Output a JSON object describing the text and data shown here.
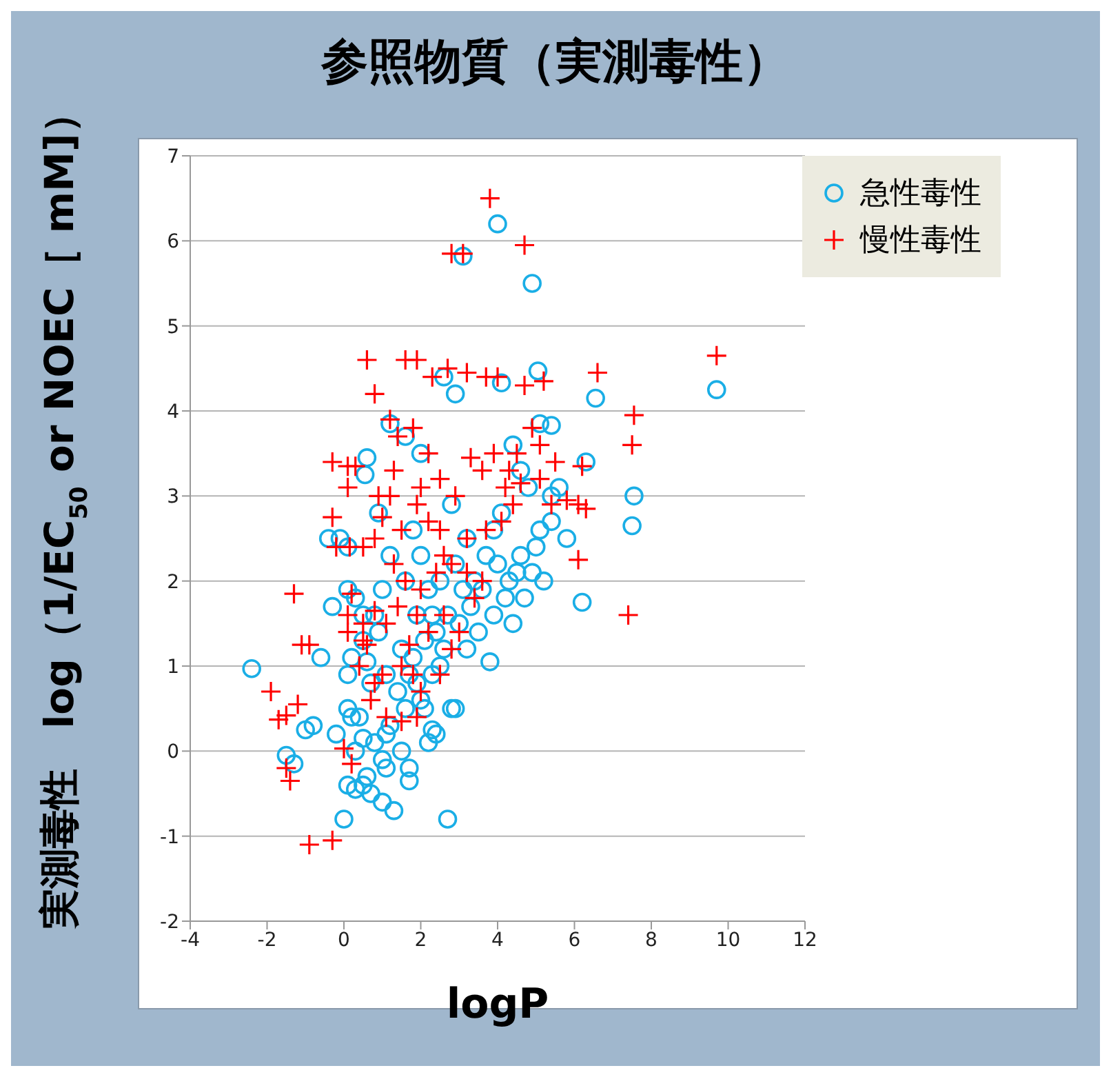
{
  "chart_data": {
    "type": "scatter",
    "title": "参照物質（実測毒性）",
    "xlabel": "logP",
    "ylabel": "実測毒性　log（1/EC$_{50}$ or NOEC［ mM]）",
    "xlim": [
      -4,
      12
    ],
    "xticks": [
      -4,
      -2,
      0,
      2,
      4,
      6,
      8,
      10,
      12
    ],
    "ylim": [
      -2,
      7
    ],
    "yticks": [
      -2,
      -1,
      0,
      1,
      2,
      3,
      4,
      5,
      6,
      7
    ],
    "grid": "y",
    "legend": "top right",
    "series": [
      {
        "name": "急性毒性",
        "color": "#1aaee6",
        "marker": "circle",
        "x": [
          -2.4,
          -1.5,
          -1.3,
          -1.0,
          -0.8,
          -0.6,
          -0.3,
          -0.4,
          -0.1,
          0.1,
          0.6,
          0.55,
          0.9,
          -0.2,
          0,
          0.1,
          0.3,
          0.5,
          0.7,
          0.6,
          1.0,
          1.3,
          1.0,
          1.1,
          1.7,
          1.7,
          2.7,
          1.5,
          2.2,
          2.3,
          2.8,
          2.9,
          0.1,
          0.2,
          0.4,
          0.5,
          0.8,
          1.2,
          0.1,
          0.2,
          0.6,
          0.5,
          0.1,
          0.3,
          0.5,
          0.8,
          0.9,
          0.7,
          1.1,
          1.4,
          1.6,
          1.9,
          2.0,
          2.3,
          2.5,
          1.8,
          2.1,
          2.4,
          2.7,
          3.0,
          3.3,
          3.6,
          3.9,
          4.2,
          4.5,
          4.7,
          3.8,
          2.6,
          1.5,
          1.9,
          2.2,
          2.5,
          2.9,
          3.1,
          3.4,
          3.7,
          4.0,
          4.3,
          4.6,
          5.0,
          5.1,
          5.4,
          5.2,
          5.6,
          5.4,
          5.8,
          6.2,
          6.3,
          6.55,
          7.55,
          7.5,
          9.7,
          4.0,
          3.1,
          4.9,
          5.05,
          4.1,
          2.6,
          2.9,
          1.2,
          1.6,
          2.0,
          5.4,
          5.1,
          4.4,
          4.6,
          1.8,
          1.2,
          2.0,
          3.2,
          2.8,
          4.1,
          4.8,
          3.9,
          1.6,
          1.0,
          2.3,
          3.5,
          4.4,
          4.9,
          3.2,
          2.1,
          1.7,
          2.4,
          1.1,
          0.3
        ],
        "values": [
          0.97,
          -0.05,
          -0.15,
          0.25,
          0.3,
          1.1,
          1.7,
          2.5,
          2.5,
          2.4,
          3.45,
          3.25,
          2.8,
          0.2,
          -0.8,
          -0.4,
          -0.45,
          -0.4,
          -0.5,
          -0.3,
          -0.6,
          -0.7,
          -0.1,
          -0.2,
          -0.2,
          -0.35,
          -0.8,
          0.0,
          0.1,
          0.25,
          0.5,
          0.5,
          0.5,
          0.4,
          0.4,
          0.15,
          0.1,
          0.3,
          0.9,
          1.1,
          1.05,
          1.3,
          1.9,
          1.8,
          1.6,
          1.6,
          1.4,
          0.8,
          0.9,
          0.7,
          0.5,
          0.8,
          0.6,
          0.9,
          1.0,
          1.1,
          1.3,
          1.4,
          1.6,
          1.5,
          1.7,
          1.9,
          1.6,
          1.8,
          2.1,
          1.8,
          1.05,
          1.2,
          1.2,
          1.6,
          1.9,
          2.0,
          2.2,
          1.9,
          2.0,
          2.3,
          2.2,
          2.0,
          2.3,
          2.4,
          2.6,
          2.7,
          2.0,
          3.1,
          3.0,
          2.5,
          1.75,
          3.4,
          4.15,
          3.0,
          2.65,
          4.25,
          6.2,
          5.82,
          5.5,
          4.47,
          4.33,
          4.4,
          4.2,
          3.85,
          3.7,
          3.5,
          3.83,
          3.85,
          3.6,
          3.3,
          2.6,
          2.3,
          2.3,
          2.5,
          2.9,
          2.8,
          3.1,
          2.6,
          2.0,
          1.9,
          1.6,
          1.4,
          1.5,
          2.1,
          1.2,
          0.5,
          0.9,
          0.2,
          0.2,
          0.0
        ]
      },
      {
        "name": "慢性毒性",
        "color": "#ff0000",
        "marker": "cross",
        "x": [
          -1.3,
          -1.1,
          -0.9,
          -1.9,
          -1.7,
          -1.5,
          -1.2,
          -1.5,
          -1.4,
          -0.9,
          -0.3,
          0.0,
          0.2,
          0.1,
          0.1,
          0.2,
          0.5,
          0.5,
          0.7,
          0.8,
          0.4,
          0.8,
          0.6,
          -0.3,
          -0.3,
          0.1,
          0.3,
          0.1,
          0.15,
          -0.2,
          0.8,
          0.5,
          0.9,
          1.0,
          0.6,
          0.8,
          1.2,
          1.6,
          1.9,
          2.3,
          2.7,
          3.2,
          3.7,
          4.0,
          4.7,
          5.2,
          3.8,
          4.7,
          2.8,
          3.1,
          1.4,
          1.8,
          2.2,
          2.5,
          2.9,
          3.3,
          3.6,
          4.2,
          4.5,
          4.9,
          5.1,
          5.5,
          5.1,
          5.4,
          5.8,
          6.1,
          6.3,
          6.2,
          6.6,
          7.55,
          7.5,
          6.1,
          7.4,
          9.7,
          1.2,
          1.5,
          1.9,
          2.2,
          2.5,
          3.2,
          3.7,
          4.1,
          4.4,
          1.3,
          1.6,
          2.0,
          2.4,
          2.8,
          3.2,
          3.6,
          1.1,
          1.4,
          1.9,
          2.2,
          2.6,
          3.0,
          3.4,
          1.0,
          1.5,
          1.8,
          2.5,
          1.1,
          1.5,
          1.9,
          2.0,
          2.8,
          4.6,
          4.3,
          3.9,
          2.0,
          1.3,
          2.6,
          1.7
        ],
        "values": [
          1.85,
          1.25,
          1.25,
          0.7,
          0.37,
          0.42,
          0.55,
          -0.2,
          -0.35,
          -1.1,
          -1.05,
          0.03,
          -0.15,
          1.4,
          1.6,
          1.85,
          1.3,
          1.5,
          0.6,
          0.8,
          1.0,
          1.65,
          1.25,
          3.4,
          2.75,
          3.35,
          3.35,
          3.1,
          2.4,
          2.4,
          2.5,
          2.4,
          3.0,
          2.75,
          4.6,
          4.2,
          3.9,
          4.6,
          4.6,
          4.4,
          4.5,
          4.45,
          4.4,
          4.4,
          4.3,
          4.35,
          6.5,
          5.95,
          5.85,
          5.85,
          3.7,
          3.8,
          3.5,
          3.2,
          3.0,
          3.45,
          3.3,
          3.1,
          3.5,
          3.8,
          3.6,
          3.4,
          3.2,
          2.9,
          2.95,
          2.9,
          2.85,
          3.35,
          4.45,
          3.95,
          3.6,
          2.25,
          1.6,
          4.65,
          3.0,
          2.6,
          2.9,
          2.7,
          2.6,
          2.5,
          2.6,
          2.7,
          2.9,
          2.2,
          2.0,
          1.9,
          2.1,
          2.2,
          2.1,
          2.0,
          1.5,
          1.7,
          1.6,
          1.4,
          1.6,
          1.4,
          1.8,
          0.9,
          1.0,
          0.9,
          0.9,
          0.4,
          0.35,
          0.4,
          0.7,
          1.2,
          3.15,
          3.3,
          3.5,
          3.1,
          3.3,
          2.3,
          1.25
        ]
      }
    ]
  }
}
